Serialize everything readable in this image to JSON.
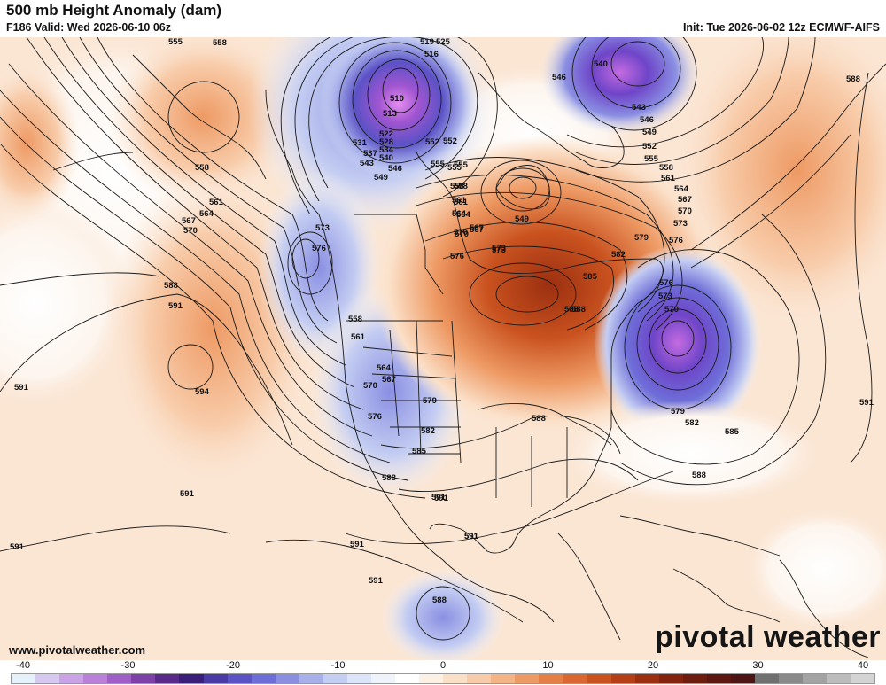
{
  "header": {
    "title": "500 mb Height Anomaly (dam)",
    "valid": "F186 Valid: Wed 2026-06-10 06z",
    "init": "Init: Tue 2026-06-02 12z ECMWF-AIFS"
  },
  "footer": {
    "website": "www.pivotalweather.com",
    "logo": "pivotal weather"
  },
  "colorbar": {
    "ticks": [
      "-40",
      "-30",
      "-20",
      "-10",
      "0",
      "10",
      "20",
      "30",
      "40"
    ],
    "colors": [
      "#e6f2fb",
      "#d6c8ee",
      "#c9a3e6",
      "#b97fd9",
      "#a05ec8",
      "#7d3fa8",
      "#5a2a8a",
      "#3b1e7a",
      "#4a3aa6",
      "#5b52c6",
      "#6e6ed8",
      "#8a8fe2",
      "#a8b0ea",
      "#c4cdf2",
      "#dbe4f8",
      "#eef3fc",
      "#ffffff",
      "#fdf0e4",
      "#fbe0c8",
      "#f8ccaa",
      "#f4b486",
      "#ee9a64",
      "#e57f46",
      "#d9672f",
      "#c9521f",
      "#b43f16",
      "#9b2f10",
      "#84240e",
      "#6e1c0e",
      "#5c1710",
      "#4c1412",
      "#707070",
      "#8a8a8a",
      "#a3a3a3",
      "#bcbcbc",
      "#d4d4d4"
    ]
  },
  "contour_labels": [
    {
      "text": "555"
    },
    {
      "text": "558"
    },
    {
      "text": "519"
    },
    {
      "text": "525"
    },
    {
      "text": "516"
    },
    {
      "text": "510"
    },
    {
      "text": "513"
    },
    {
      "text": "522"
    },
    {
      "text": "528"
    },
    {
      "text": "531"
    },
    {
      "text": "534"
    },
    {
      "text": "537"
    },
    {
      "text": "540"
    },
    {
      "text": "543"
    },
    {
      "text": "546"
    },
    {
      "text": "549"
    },
    {
      "text": "552"
    },
    {
      "text": "555"
    },
    {
      "text": "558"
    },
    {
      "text": "561"
    },
    {
      "text": "564"
    },
    {
      "text": "567"
    },
    {
      "text": "570"
    },
    {
      "text": "573"
    },
    {
      "text": "576"
    },
    {
      "text": "558"
    },
    {
      "text": "561"
    },
    {
      "text": "564"
    },
    {
      "text": "567"
    },
    {
      "text": "570"
    },
    {
      "text": "588"
    },
    {
      "text": "591"
    },
    {
      "text": "594"
    },
    {
      "text": "591"
    },
    {
      "text": "552"
    },
    {
      "text": "555"
    },
    {
      "text": "558"
    },
    {
      "text": "561"
    },
    {
      "text": "564"
    },
    {
      "text": "567"
    },
    {
      "text": "570"
    },
    {
      "text": "573"
    },
    {
      "text": "579"
    },
    {
      "text": "576"
    },
    {
      "text": "582"
    },
    {
      "text": "585"
    },
    {
      "text": "588"
    },
    {
      "text": "591"
    },
    {
      "text": "591"
    },
    {
      "text": "588"
    },
    {
      "text": "591"
    },
    {
      "text": "591"
    },
    {
      "text": "591"
    },
    {
      "text": "591"
    },
    {
      "text": "588"
    },
    {
      "text": "546"
    },
    {
      "text": "540"
    },
    {
      "text": "543"
    },
    {
      "text": "546"
    },
    {
      "text": "549"
    },
    {
      "text": "552"
    },
    {
      "text": "555"
    },
    {
      "text": "558"
    },
    {
      "text": "561"
    },
    {
      "text": "564"
    },
    {
      "text": "567"
    },
    {
      "text": "570"
    },
    {
      "text": "573"
    },
    {
      "text": "576"
    },
    {
      "text": "579"
    },
    {
      "text": "582"
    },
    {
      "text": "585"
    },
    {
      "text": "588"
    },
    {
      "text": "576"
    },
    {
      "text": "573"
    },
    {
      "text": "570"
    },
    {
      "text": "579"
    },
    {
      "text": "582"
    },
    {
      "text": "585"
    },
    {
      "text": "588"
    },
    {
      "text": "549"
    },
    {
      "text": "555"
    },
    {
      "text": "558"
    },
    {
      "text": "561"
    },
    {
      "text": "564"
    },
    {
      "text": "567"
    },
    {
      "text": "570"
    },
    {
      "text": "573"
    },
    {
      "text": "576"
    },
    {
      "text": "588"
    },
    {
      "text": "591"
    },
    {
      "text": "588"
    },
    {
      "text": "591"
    },
    {
      "text": "591"
    }
  ]
}
